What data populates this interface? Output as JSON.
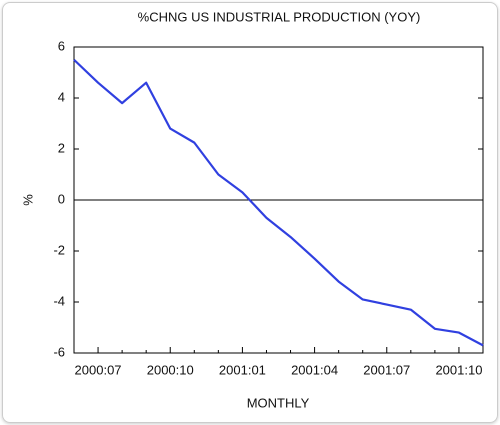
{
  "chart_data": {
    "type": "line",
    "title": "%CHNG US INDUSTRIAL PRODUCTION (YOY)",
    "x_label": "MONTHLY",
    "y_label": "%",
    "categories": [
      null,
      "2000:07",
      null,
      null,
      "2000:10",
      null,
      null,
      "2001:01",
      null,
      null,
      "2001:04",
      null,
      null,
      "2001:07",
      null,
      null,
      "2001:10",
      null
    ],
    "series": [
      {
        "name": "%CHNG US INDUSTRIAL PRODUCTION",
        "color": "#3040e0",
        "values": [
          5.5,
          4.6,
          3.8,
          4.6,
          2.8,
          2.25,
          1.0,
          0.3,
          -0.7,
          -1.45,
          -2.3,
          -3.2,
          -3.9,
          -4.1,
          -4.3,
          -5.05,
          -5.2,
          -5.7
        ]
      }
    ],
    "ylim": [
      -6,
      6
    ],
    "yticks": [
      -6,
      -4,
      -2,
      0,
      2,
      4,
      6
    ],
    "reference_line": 0
  }
}
